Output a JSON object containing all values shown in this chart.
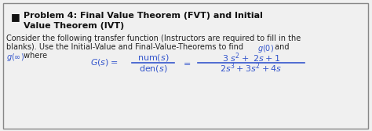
{
  "title_line1": "Problem 4: Final Value Theorem (FVT) and Initial",
  "title_line2": "Value Theorem (IVT)",
  "bullet": "■",
  "body_line1": "Consider the following transfer function (Instructors are required to fill in the",
  "body_line2": "blanks). Use the Initial-Value and Final-Value-Theorems to find ",
  "body_line2_math": "$g(0)$",
  "body_line2_end": " and",
  "body_line3_math": "$g(\\infty)$",
  "body_line3_end": " where",
  "formula_Gs": "$G(s) =$",
  "formula_num": "num$(s)$",
  "formula_den": "den$(s)$",
  "formula_eq": "$=$",
  "formula_num2": "$3\\ s^2 +\\ 2s + 1$",
  "formula_den2": "$2s^3 + 3s^2 + 4s$",
  "bg_color": "#f0f0f0",
  "border_color": "#888888",
  "title_color": "#111111",
  "body_color": "#222222",
  "math_color": "#3355cc",
  "formula_color": "#3355cc",
  "fig_width": 4.74,
  "fig_height": 1.67,
  "dpi": 100
}
